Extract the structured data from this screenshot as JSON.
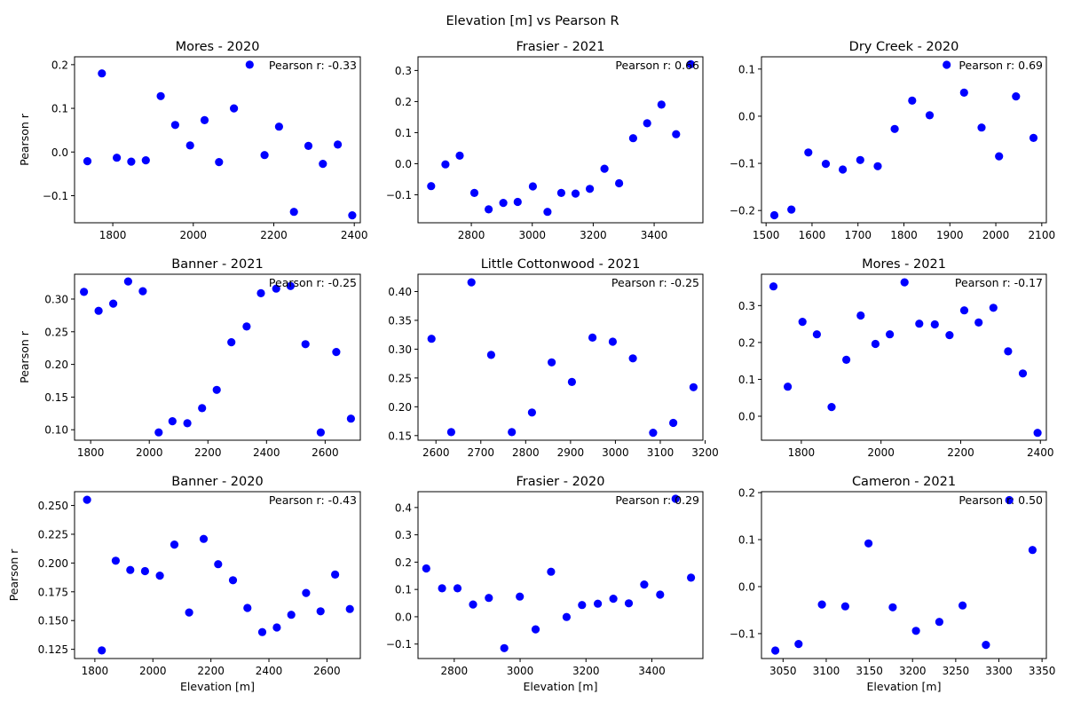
{
  "figure": {
    "suptitle": "Elevation [m] vs Pearson R"
  },
  "colors": {
    "point": "#0000ff",
    "axis": "#000000"
  },
  "chart_data": [
    {
      "type": "scatter",
      "title": "Mores - 2020",
      "ylabel": "Pearson r",
      "xlabel": "",
      "annotation": "Pearson r: -0.33",
      "xlim": [
        1705,
        2415
      ],
      "ylim": [
        -0.162,
        0.218
      ],
      "xticks": [
        1800,
        2000,
        2200,
        2400
      ],
      "xtick_labels": [
        "1800",
        "2000",
        "2200",
        "2400"
      ],
      "yticks": [
        -0.1,
        0.0,
        0.1,
        0.2
      ],
      "ytick_labels": [
        "−0.1",
        "0.0",
        "0.1",
        "0.2"
      ],
      "x": [
        1737,
        1773,
        1810,
        1846,
        1882,
        1919,
        1955,
        1992,
        2028,
        2064,
        2101,
        2140,
        2177,
        2213,
        2250,
        2286,
        2322,
        2359,
        2395
      ],
      "y": [
        -0.021,
        0.18,
        -0.013,
        -0.022,
        -0.019,
        0.128,
        0.062,
        0.015,
        0.073,
        -0.023,
        0.1,
        0.2,
        -0.007,
        0.058,
        -0.137,
        0.014,
        -0.027,
        0.017,
        -0.145
      ]
    },
    {
      "type": "scatter",
      "title": "Frasier - 2021",
      "ylabel": "",
      "xlabel": "",
      "annotation": "Pearson r: 0.66",
      "xlim": [
        2625,
        3560
      ],
      "ylim": [
        -0.19,
        0.344
      ],
      "xticks": [
        2800,
        3000,
        3200,
        3400
      ],
      "xtick_labels": [
        "2800",
        "3000",
        "3200",
        "3400"
      ],
      "yticks": [
        -0.1,
        0.0,
        0.1,
        0.2,
        0.3
      ],
      "ytick_labels": [
        "−0.1",
        "0.0",
        "0.1",
        "0.2",
        "0.3"
      ],
      "x": [
        2668,
        2715,
        2762,
        2810,
        2857,
        2905,
        2952,
        3002,
        3050,
        3095,
        3142,
        3189,
        3237,
        3285,
        3331,
        3377,
        3424,
        3472,
        3520
      ],
      "y": [
        -0.072,
        -0.002,
        0.026,
        -0.094,
        -0.147,
        -0.126,
        -0.123,
        -0.073,
        -0.155,
        -0.094,
        -0.096,
        -0.081,
        -0.016,
        -0.063,
        0.082,
        0.13,
        0.19,
        0.095,
        0.32
      ]
    },
    {
      "type": "scatter",
      "title": "Dry Creek - 2020",
      "ylabel": "",
      "xlabel": "",
      "annotation": "Pearson r: 0.69",
      "xlim": [
        1490,
        2110
      ],
      "ylim": [
        -0.226,
        0.126
      ],
      "xticks": [
        1500,
        1600,
        1700,
        1800,
        1900,
        2000,
        2100
      ],
      "xtick_labels": [
        "1500",
        "1600",
        "1700",
        "1800",
        "1900",
        "2000",
        "2100"
      ],
      "yticks": [
        -0.2,
        -0.1,
        0.0,
        0.1
      ],
      "ytick_labels": [
        "−0.2",
        "−0.1",
        "0.0",
        "0.1"
      ],
      "x": [
        1518,
        1555,
        1592,
        1630,
        1667,
        1705,
        1743,
        1780,
        1818,
        1856,
        1893,
        1931,
        1969,
        2007,
        2044,
        2082
      ],
      "y": [
        -0.21,
        -0.198,
        -0.077,
        -0.101,
        -0.113,
        -0.093,
        -0.106,
        -0.027,
        0.033,
        0.002,
        0.109,
        0.05,
        -0.024,
        -0.085,
        0.042,
        -0.046
      ]
    },
    {
      "type": "scatter",
      "title": "Banner - 2021",
      "ylabel": "Pearson r",
      "xlabel": "",
      "annotation": "Pearson r: -0.25",
      "xlim": [
        1745,
        2720
      ],
      "ylim": [
        0.084,
        0.338
      ],
      "xticks": [
        1800,
        2000,
        2200,
        2400,
        2600
      ],
      "xtick_labels": [
        "1800",
        "2000",
        "2200",
        "2400",
        "2600"
      ],
      "yticks": [
        0.1,
        0.15,
        0.2,
        0.25,
        0.3
      ],
      "ytick_labels": [
        "0.10",
        "0.15",
        "0.20",
        "0.25",
        "0.30"
      ],
      "x": [
        1777,
        1827,
        1877,
        1928,
        1978,
        2032,
        2079,
        2130,
        2180,
        2230,
        2280,
        2332,
        2381,
        2433,
        2482,
        2533,
        2585,
        2638,
        2688
      ],
      "y": [
        0.311,
        0.282,
        0.293,
        0.327,
        0.312,
        0.096,
        0.113,
        0.11,
        0.133,
        0.161,
        0.234,
        0.258,
        0.309,
        0.316,
        0.32,
        0.231,
        0.096,
        0.219,
        0.117
      ]
    },
    {
      "type": "scatter",
      "title": "Little Cottonwood - 2021",
      "ylabel": "",
      "xlabel": "",
      "annotation": "Pearson r: -0.25",
      "xlim": [
        2560,
        3195
      ],
      "ylim": [
        0.142,
        0.43
      ],
      "xticks": [
        2600,
        2700,
        2800,
        2900,
        3000,
        3100,
        3200
      ],
      "xtick_labels": [
        "2600",
        "2700",
        "2800",
        "2900",
        "3000",
        "3100",
        "3200"
      ],
      "yticks": [
        0.15,
        0.2,
        0.25,
        0.3,
        0.35,
        0.4
      ],
      "ytick_labels": [
        "0.15",
        "0.20",
        "0.25",
        "0.30",
        "0.35",
        "0.40"
      ],
      "x": [
        2590,
        2634,
        2679,
        2723,
        2769,
        2814,
        2858,
        2903,
        2949,
        2994,
        3039,
        3084,
        3129,
        3174
      ],
      "y": [
        0.318,
        0.156,
        0.416,
        0.29,
        0.156,
        0.19,
        0.277,
        0.243,
        0.32,
        0.313,
        0.284,
        0.155,
        0.172,
        0.234
      ]
    },
    {
      "type": "scatter",
      "title": "Mores - 2021",
      "ylabel": "",
      "xlabel": "",
      "annotation": "Pearson r: -0.17",
      "xlim": [
        1700,
        2415
      ],
      "ylim": [
        -0.065,
        0.385
      ],
      "xticks": [
        1800,
        2000,
        2200,
        2400
      ],
      "xtick_labels": [
        "1800",
        "2000",
        "2200",
        "2400"
      ],
      "yticks": [
        0.0,
        0.1,
        0.2,
        0.3
      ],
      "ytick_labels": [
        "0.0",
        "0.1",
        "0.2",
        "0.3"
      ],
      "x": [
        1730,
        1766,
        1803,
        1839,
        1876,
        1913,
        1949,
        1986,
        2022,
        2059,
        2096,
        2135,
        2172,
        2209,
        2245,
        2282,
        2319,
        2356,
        2393
      ],
      "y": [
        0.352,
        0.08,
        0.256,
        0.222,
        0.025,
        0.153,
        0.273,
        0.196,
        0.222,
        0.363,
        0.251,
        0.249,
        0.22,
        0.287,
        0.254,
        0.294,
        0.176,
        0.116,
        -0.045
      ]
    },
    {
      "type": "scatter",
      "title": "Banner - 2020",
      "ylabel": "Pearson r",
      "xlabel": "Elevation [m]",
      "annotation": "Pearson r: -0.43",
      "xlim": [
        1730,
        2715
      ],
      "ylim": [
        0.117,
        0.262
      ],
      "xticks": [
        1800,
        2000,
        2200,
        2400,
        2600
      ],
      "xtick_labels": [
        "1800",
        "2000",
        "2200",
        "2400",
        "2600"
      ],
      "yticks": [
        0.125,
        0.15,
        0.175,
        0.2,
        0.225,
        0.25
      ],
      "ytick_labels": [
        "0.125",
        "0.150",
        "0.175",
        "0.200",
        "0.225",
        "0.250"
      ],
      "x": [
        1773,
        1824,
        1872,
        1922,
        1973,
        2024,
        2074,
        2125,
        2175,
        2225,
        2276,
        2326,
        2377,
        2427,
        2477,
        2528,
        2578,
        2628,
        2679
      ],
      "y": [
        0.255,
        0.124,
        0.202,
        0.194,
        0.193,
        0.189,
        0.216,
        0.157,
        0.221,
        0.199,
        0.185,
        0.161,
        0.14,
        0.144,
        0.155,
        0.174,
        0.158,
        0.19,
        0.16
      ]
    },
    {
      "type": "scatter",
      "title": "Frasier - 2020",
      "ylabel": "",
      "xlabel": "Elevation [m]",
      "annotation": "Pearson r: 0.29",
      "xlim": [
        2690,
        3555
      ],
      "ylim": [
        -0.153,
        0.458
      ],
      "xticks": [
        2800,
        3000,
        3200,
        3400
      ],
      "xtick_labels": [
        "2800",
        "3000",
        "3200",
        "3400"
      ],
      "yticks": [
        -0.1,
        0.0,
        0.1,
        0.2,
        0.3,
        0.4
      ],
      "ytick_labels": [
        "−0.1",
        "0.0",
        "0.1",
        "0.2",
        "0.3",
        "0.4"
      ],
      "x": [
        2715,
        2763,
        2810,
        2857,
        2905,
        2952,
        2999,
        3047,
        3094,
        3141,
        3188,
        3236,
        3283,
        3330,
        3377,
        3425,
        3472,
        3519
      ],
      "y": [
        0.177,
        0.104,
        0.104,
        0.045,
        0.069,
        -0.115,
        0.074,
        -0.046,
        0.165,
        -0.001,
        0.043,
        0.048,
        0.066,
        0.049,
        0.118,
        0.081,
        0.432,
        0.143
      ]
    },
    {
      "type": "scatter",
      "title": "Cameron - 2021",
      "ylabel": "",
      "xlabel": "Elevation [m]",
      "annotation": "Pearson r: 0.50",
      "xlim": [
        3025,
        3355
      ],
      "ylim": [
        -0.153,
        0.202
      ],
      "xticks": [
        3050,
        3100,
        3150,
        3200,
        3250,
        3300,
        3350
      ],
      "xtick_labels": [
        "3050",
        "3100",
        "3150",
        "3200",
        "3250",
        "3300",
        "3350"
      ],
      "yticks": [
        -0.1,
        0.0,
        0.1,
        0.2
      ],
      "ytick_labels": [
        "−0.1",
        "0.0",
        "0.1",
        "0.2"
      ],
      "x": [
        3041,
        3068,
        3095,
        3122,
        3149,
        3177,
        3204,
        3231,
        3258,
        3285,
        3312,
        3339
      ],
      "y": [
        -0.136,
        -0.122,
        -0.038,
        -0.042,
        0.092,
        -0.044,
        -0.094,
        -0.075,
        -0.04,
        -0.124,
        0.184,
        0.078
      ]
    }
  ]
}
